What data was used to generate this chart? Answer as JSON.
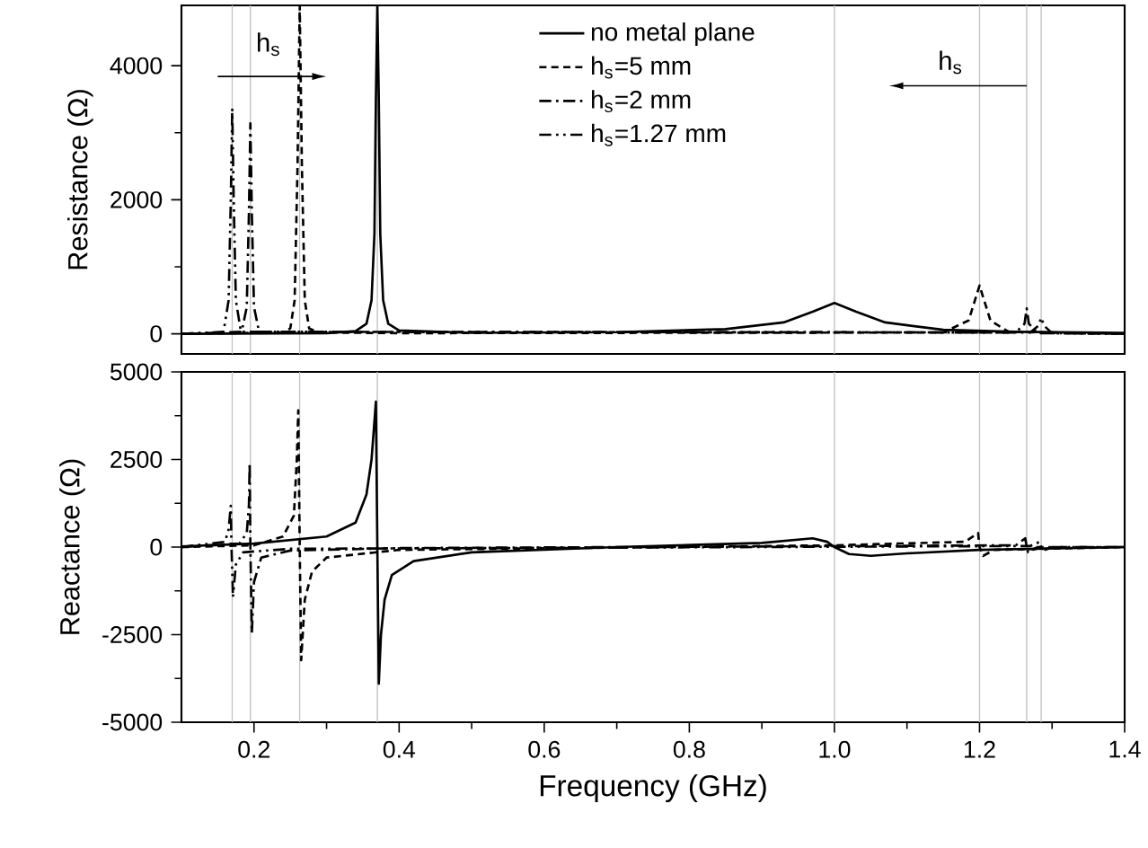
{
  "chart_data": [
    {
      "type": "line",
      "ylabel": "Resistance (Ω)",
      "xlim": [
        0.1,
        1.4
      ],
      "ylim": [
        -300,
        4900
      ],
      "yticks": [
        0,
        2000,
        4000
      ],
      "tick_labels": "y",
      "legend": "top",
      "annotations": [
        "h$_{s}$",
        "h$_{s}$"
      ],
      "ref_lines": [
        {
          "axis": "x",
          "value": 0.17,
          "color": "#c0c0c0"
        },
        {
          "axis": "x",
          "value": 0.195,
          "color": "#c0c0c0"
        },
        {
          "axis": "x",
          "value": 0.263,
          "color": "#c0c0c0"
        },
        {
          "axis": "x",
          "value": 0.37,
          "color": "#c0c0c0"
        },
        {
          "axis": "x",
          "value": 1.0,
          "color": "#c0c0c0"
        },
        {
          "axis": "x",
          "value": 1.2,
          "color": "#c0c0c0"
        },
        {
          "axis": "x",
          "value": 1.265,
          "color": "#c0c0c0"
        },
        {
          "axis": "x",
          "value": 1.285,
          "color": "#c0c0c0"
        }
      ],
      "series": [
        {
          "name": "no metal plane",
          "color": "#000000",
          "line_style": "solid",
          "x": [
            0.1,
            0.3,
            0.34,
            0.355,
            0.362,
            0.366,
            0.368,
            0.37,
            0.372,
            0.374,
            0.378,
            0.385,
            0.4,
            0.5,
            0.7,
            0.85,
            0.93,
            0.97,
            1.0,
            1.03,
            1.07,
            1.15,
            1.25,
            1.4
          ],
          "values": [
            0,
            10,
            40,
            150,
            500,
            1500,
            3500,
            4900,
            3500,
            1500,
            500,
            150,
            50,
            15,
            25,
            70,
            170,
            330,
            460,
            330,
            170,
            60,
            30,
            15
          ]
        },
        {
          "name": "h$_{s}$=5 mm",
          "color": "#000000",
          "line_style": "dashed",
          "x": [
            0.1,
            0.24,
            0.25,
            0.256,
            0.26,
            0.263,
            0.266,
            0.27,
            0.276,
            0.29,
            0.4,
            1.15,
            1.185,
            1.2,
            1.215,
            1.24,
            1.4
          ],
          "values": [
            0,
            20,
            80,
            500,
            2500,
            4900,
            2500,
            500,
            80,
            20,
            10,
            20,
            200,
            720,
            200,
            30,
            0
          ]
        },
        {
          "name": "h$_{s}$=2 mm",
          "color": "#000000",
          "line_style": "dashdot",
          "x": [
            0.1,
            0.183,
            0.19,
            0.193,
            0.195,
            0.197,
            0.2,
            0.207,
            1.25,
            1.262,
            1.265,
            1.268,
            1.28,
            1.4
          ],
          "values": [
            0,
            30,
            400,
            1800,
            3140,
            1800,
            400,
            30,
            20,
            150,
            380,
            150,
            10,
            0
          ]
        },
        {
          "name": "h$_{s}$=1.27 mm",
          "color": "#000000",
          "line_style": "dashdotdot",
          "x": [
            0.1,
            0.158,
            0.165,
            0.168,
            0.17,
            0.172,
            0.175,
            0.182,
            1.27,
            1.281,
            1.285,
            1.289,
            1.3,
            1.4
          ],
          "values": [
            0,
            30,
            500,
            2000,
            3360,
            2000,
            500,
            30,
            20,
            120,
            240,
            120,
            10,
            0
          ]
        }
      ]
    },
    {
      "type": "line",
      "xlabel": "Frequency (GHz)",
      "ylabel": "Reactance (Ω)",
      "xlim": [
        0.1,
        1.4
      ],
      "ylim": [
        -5000,
        5000
      ],
      "xticks": [
        0.2,
        0.4,
        0.6,
        0.8,
        {
          "value": 1.0,
          "label": "1.0"
        },
        1.2,
        1.4
      ],
      "yticks": [
        -5000,
        -2500,
        0,
        2500,
        5000
      ],
      "ref_lines": [
        {
          "axis": "x",
          "value": 0.17,
          "color": "#c0c0c0"
        },
        {
          "axis": "x",
          "value": 0.195,
          "color": "#c0c0c0"
        },
        {
          "axis": "x",
          "value": 0.263,
          "color": "#c0c0c0"
        },
        {
          "axis": "x",
          "value": 0.37,
          "color": "#c0c0c0"
        },
        {
          "axis": "x",
          "value": 1.0,
          "color": "#c0c0c0"
        },
        {
          "axis": "x",
          "value": 1.2,
          "color": "#c0c0c0"
        },
        {
          "axis": "x",
          "value": 1.265,
          "color": "#c0c0c0"
        },
        {
          "axis": "x",
          "value": 1.285,
          "color": "#c0c0c0"
        }
      ],
      "series": [
        {
          "color": "#000000",
          "line_style": "solid",
          "x": [
            0.1,
            0.2,
            0.3,
            0.34,
            0.355,
            0.362,
            0.366,
            0.368,
            0.37,
            0.372,
            0.375,
            0.38,
            0.39,
            0.42,
            0.5,
            0.7,
            0.9,
            0.97,
            0.99,
            1.0,
            1.02,
            1.05,
            1.1,
            1.2,
            1.4
          ],
          "values": [
            20,
            100,
            300,
            700,
            1500,
            2500,
            3600,
            4150,
            0,
            -3900,
            -2500,
            -1500,
            -800,
            -400,
            -150,
            0,
            120,
            250,
            150,
            0,
            -200,
            -250,
            -180,
            -80,
            0
          ]
        },
        {
          "color": "#000000",
          "line_style": "dashed",
          "x": [
            0.1,
            0.2,
            0.24,
            0.255,
            0.259,
            0.261,
            0.263,
            0.265,
            0.27,
            0.28,
            0.3,
            0.4,
            1.0,
            1.18,
            1.198,
            1.2,
            1.205,
            1.22,
            1.4
          ],
          "values": [
            0,
            50,
            300,
            900,
            2500,
            3900,
            0,
            -3230,
            -1500,
            -700,
            -300,
            -80,
            50,
            150,
            400,
            0,
            -250,
            -80,
            0
          ]
        },
        {
          "color": "#000000",
          "line_style": "dashdot",
          "x": [
            0.1,
            0.18,
            0.19,
            0.193,
            0.194,
            0.195,
            0.197,
            0.2,
            0.21,
            0.25,
            0.4,
            1.25,
            1.263,
            1.265,
            1.267,
            1.28,
            1.4
          ],
          "values": [
            0,
            100,
            400,
            1200,
            2400,
            0,
            -2450,
            -1000,
            -300,
            -100,
            -30,
            50,
            250,
            0,
            -150,
            0,
            0
          ]
        },
        {
          "color": "#000000",
          "line_style": "dashdotdot",
          "x": [
            0.1,
            0.16,
            0.165,
            0.168,
            0.169,
            0.171,
            0.175,
            0.185,
            0.25,
            1.27,
            1.283,
            1.285,
            1.287,
            1.3,
            1.4
          ],
          "values": [
            0,
            150,
            500,
            1180,
            0,
            -1430,
            -500,
            -150,
            -50,
            30,
            150,
            0,
            -100,
            0,
            0
          ]
        }
      ]
    }
  ]
}
